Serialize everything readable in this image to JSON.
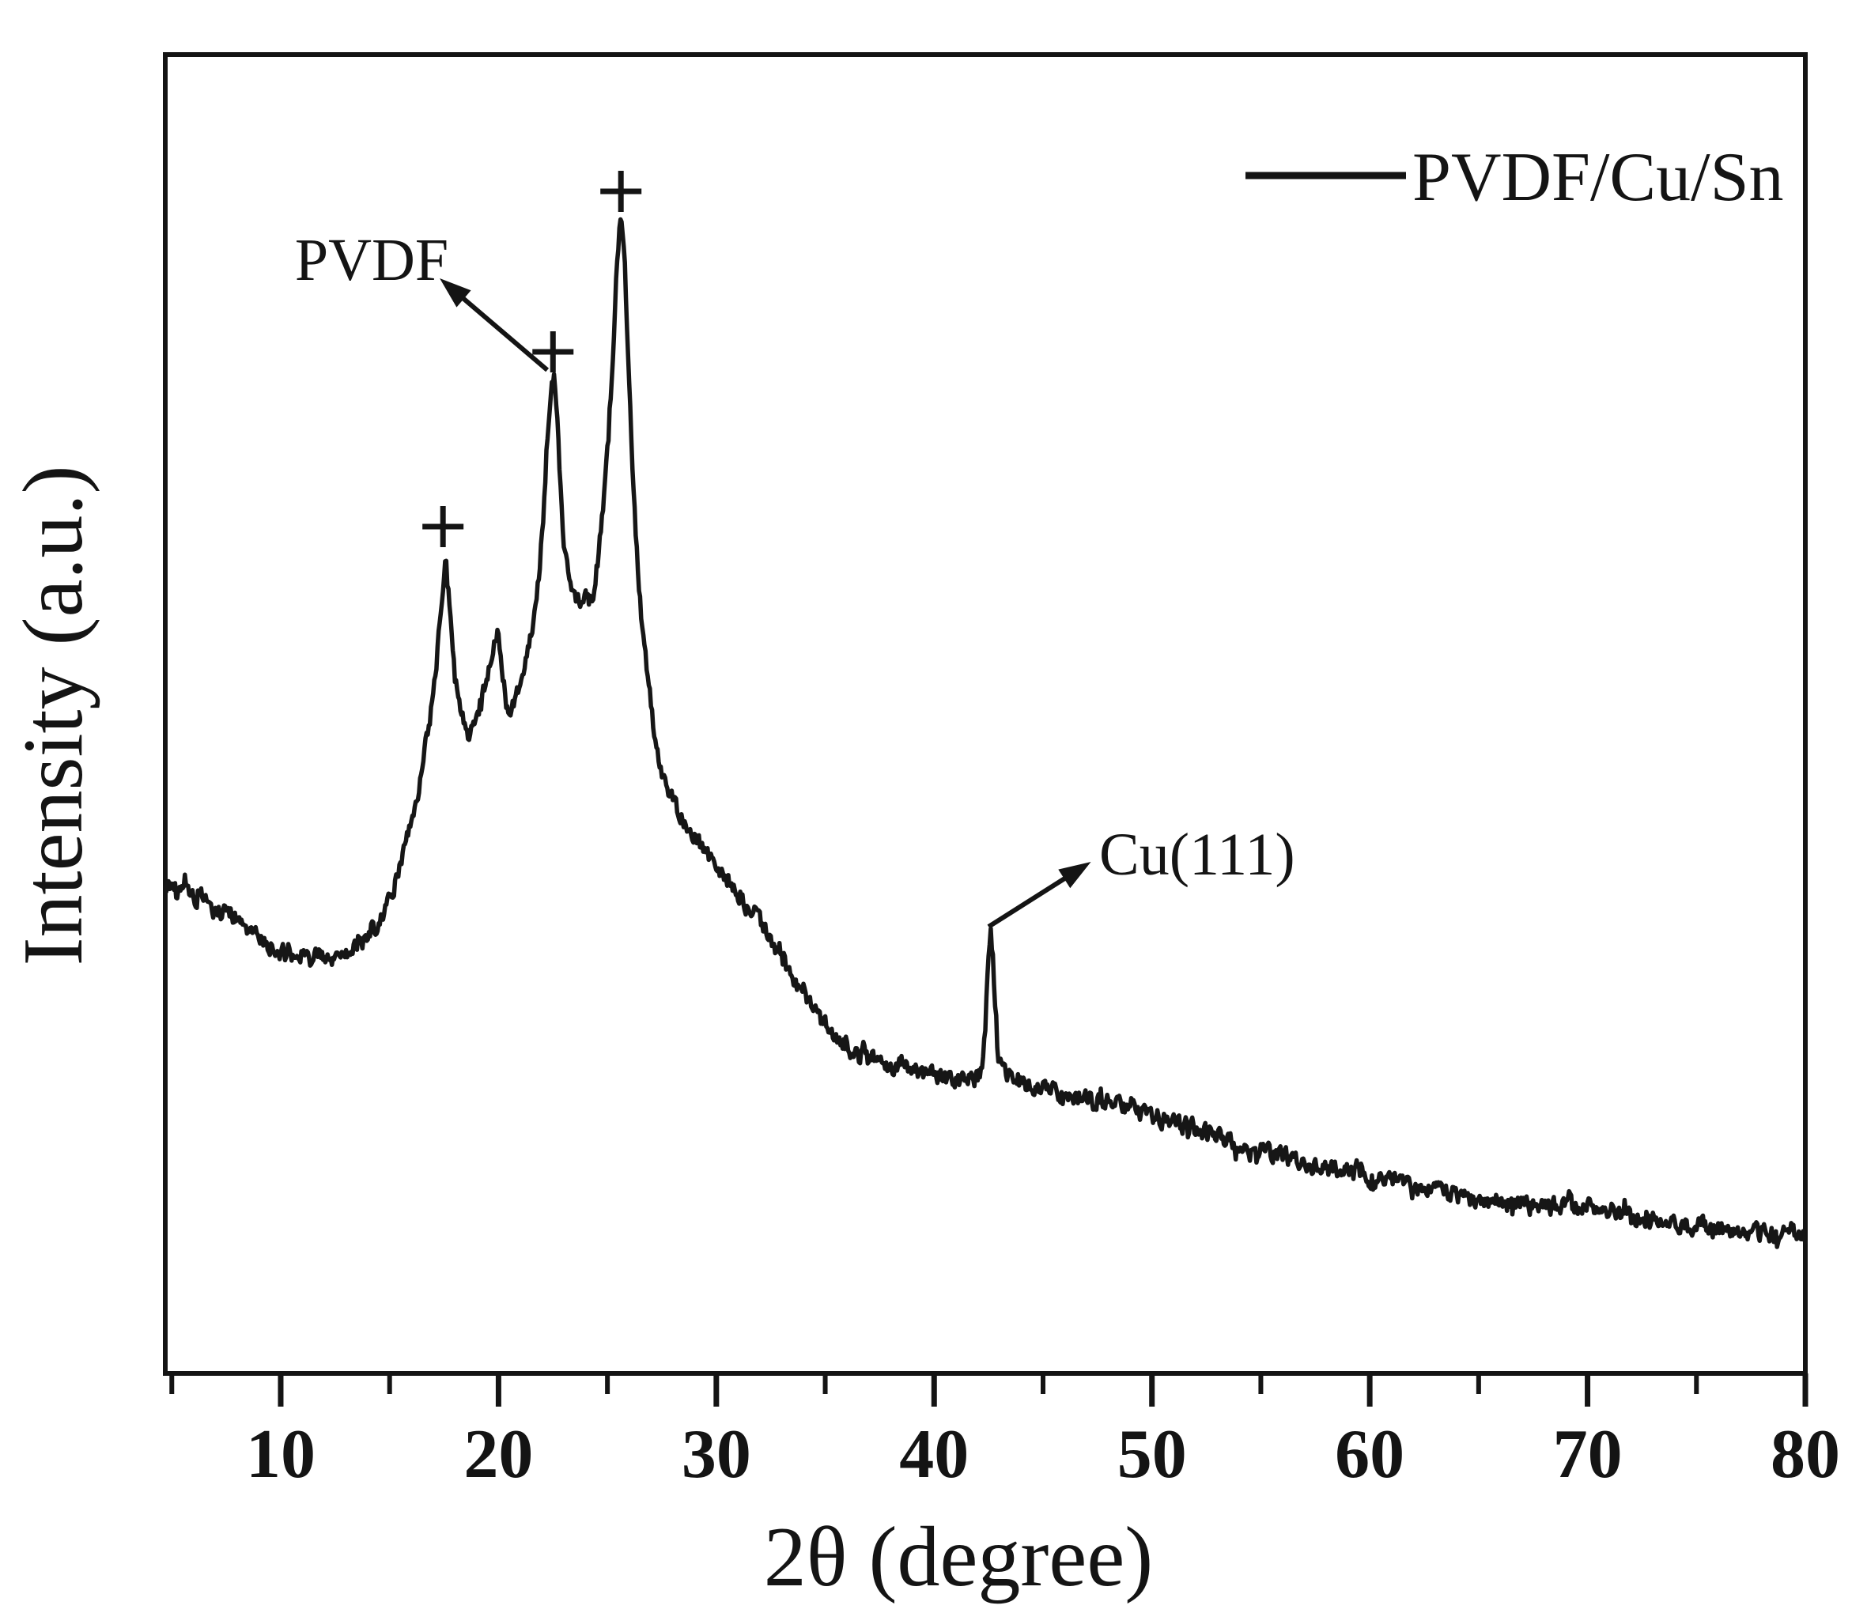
{
  "figure": {
    "background_color": "#ffffff",
    "ink_color": "#141414",
    "description": "XRD pattern of PVDF/Cu/Sn composite film"
  },
  "legend": {
    "swatch": "solid-line",
    "label": "PVDF/Cu/Sn"
  },
  "chart_data": {
    "type": "line",
    "title": "",
    "xlabel": "2θ (degree)",
    "ylabel": "Intensity (a.u.)",
    "xlim": [
      4.7,
      80
    ],
    "ylim": [
      0,
      1668
    ],
    "x_major_ticks": [
      10,
      20,
      30,
      40,
      50,
      60,
      70,
      80
    ],
    "x_minor_ticks": [
      5,
      15,
      25,
      35,
      45,
      55,
      65,
      75
    ],
    "y_ticks": [],
    "grid": false,
    "legend_position": "top-right",
    "noise_amplitude_au": 11,
    "series": [
      {
        "name": "PVDF/Cu/Sn",
        "color": "#141414",
        "points": [
          [
            5.0,
            617
          ],
          [
            5.3,
            606
          ],
          [
            5.6,
            612
          ],
          [
            6.0,
            600
          ],
          [
            6.4,
            606
          ],
          [
            6.8,
            588
          ],
          [
            7.2,
            585
          ],
          [
            7.6,
            585
          ],
          [
            8.0,
            570
          ],
          [
            8.4,
            563
          ],
          [
            8.8,
            556
          ],
          [
            9.2,
            548
          ],
          [
            9.6,
            541
          ],
          [
            10.0,
            533
          ],
          [
            10.4,
            527
          ],
          [
            10.8,
            523
          ],
          [
            11.2,
            521
          ],
          [
            11.6,
            526
          ],
          [
            12.0,
            530
          ],
          [
            12.4,
            527
          ],
          [
            12.8,
            531
          ],
          [
            13.2,
            533
          ],
          [
            13.6,
            541
          ],
          [
            14.0,
            549
          ],
          [
            14.4,
            565
          ],
          [
            14.8,
            588
          ],
          [
            15.2,
            618
          ],
          [
            15.6,
            655
          ],
          [
            16.0,
            700
          ],
          [
            16.4,
            748
          ],
          [
            16.8,
            815
          ],
          [
            17.1,
            880
          ],
          [
            17.35,
            960
          ],
          [
            17.55,
            1042
          ],
          [
            17.7,
            1000
          ],
          [
            17.85,
            935
          ],
          [
            18.0,
            880
          ],
          [
            18.15,
            858
          ],
          [
            18.3,
            840
          ],
          [
            18.5,
            818
          ],
          [
            18.65,
            809
          ],
          [
            18.8,
            826
          ],
          [
            19.1,
            845
          ],
          [
            19.4,
            868
          ],
          [
            19.7,
            905
          ],
          [
            19.95,
            943
          ],
          [
            20.1,
            915
          ],
          [
            20.25,
            875
          ],
          [
            20.45,
            850
          ],
          [
            20.6,
            846
          ],
          [
            20.8,
            856
          ],
          [
            21.0,
            874
          ],
          [
            21.3,
            900
          ],
          [
            21.6,
            948
          ],
          [
            21.85,
            1010
          ],
          [
            22.05,
            1085
          ],
          [
            22.25,
            1185
          ],
          [
            22.45,
            1255
          ],
          [
            22.55,
            1262
          ],
          [
            22.7,
            1205
          ],
          [
            22.85,
            1120
          ],
          [
            23.0,
            1045
          ],
          [
            23.2,
            1005
          ],
          [
            23.45,
            985
          ],
          [
            23.7,
            972
          ],
          [
            23.85,
            968
          ],
          [
            24.0,
            977
          ],
          [
            24.15,
            972
          ],
          [
            24.35,
            990
          ],
          [
            24.6,
            1035
          ],
          [
            24.85,
            1105
          ],
          [
            25.05,
            1185
          ],
          [
            25.25,
            1295
          ],
          [
            25.45,
            1405
          ],
          [
            25.62,
            1467
          ],
          [
            25.8,
            1395
          ],
          [
            25.95,
            1285
          ],
          [
            26.1,
            1180
          ],
          [
            26.3,
            1060
          ],
          [
            26.55,
            960
          ],
          [
            26.8,
            890
          ],
          [
            27.1,
            818
          ],
          [
            27.4,
            772
          ],
          [
            27.7,
            745
          ],
          [
            28.0,
            725
          ],
          [
            28.4,
            703
          ],
          [
            28.8,
            688
          ],
          [
            29.2,
            672
          ],
          [
            29.6,
            658
          ],
          [
            30.0,
            641
          ],
          [
            30.5,
            623
          ],
          [
            31.0,
            606
          ],
          [
            31.5,
            592
          ],
          [
            32.0,
            572
          ],
          [
            32.5,
            551
          ],
          [
            33.0,
            522
          ],
          [
            33.5,
            501
          ],
          [
            34.0,
            479
          ],
          [
            34.5,
            461
          ],
          [
            35.0,
            442
          ],
          [
            35.5,
            426
          ],
          [
            36.0,
            413
          ],
          [
            36.5,
            401
          ],
          [
            37.0,
            395
          ],
          [
            37.5,
            391
          ],
          [
            38.0,
            388
          ],
          [
            38.5,
            394
          ],
          [
            39.0,
            386
          ],
          [
            39.5,
            381
          ],
          [
            40.0,
            378
          ],
          [
            40.5,
            375
          ],
          [
            41.0,
            372
          ],
          [
            41.5,
            370
          ],
          [
            42.0,
            373
          ],
          [
            42.2,
            382
          ],
          [
            42.35,
            440
          ],
          [
            42.5,
            530
          ],
          [
            42.6,
            557
          ],
          [
            42.7,
            528
          ],
          [
            42.8,
            468
          ],
          [
            42.95,
            405
          ],
          [
            43.15,
            382
          ],
          [
            43.4,
            374
          ],
          [
            43.7,
            369
          ],
          [
            44.0,
            366
          ],
          [
            44.5,
            363
          ],
          [
            45.0,
            360
          ],
          [
            45.5,
            357
          ],
          [
            46.0,
            354
          ],
          [
            46.5,
            351
          ],
          [
            47.0,
            349
          ],
          [
            47.5,
            347
          ],
          [
            48.0,
            343
          ],
          [
            48.5,
            339
          ],
          [
            49.0,
            334
          ],
          [
            49.5,
            330
          ],
          [
            50.0,
            327
          ],
          [
            50.5,
            322
          ],
          [
            51.0,
            317
          ],
          [
            51.5,
            313
          ],
          [
            52.0,
            309
          ],
          [
            52.5,
            304
          ],
          [
            53.0,
            299
          ],
          [
            53.5,
            295
          ],
          [
            54.0,
            291
          ],
          [
            54.5,
            286
          ],
          [
            55.0,
            281
          ],
          [
            55.5,
            277
          ],
          [
            56.0,
            274
          ],
          [
            56.5,
            270
          ],
          [
            57.0,
            267
          ],
          [
            57.5,
            264
          ],
          [
            58.0,
            261
          ],
          [
            58.5,
            258
          ],
          [
            59.0,
            255
          ],
          [
            59.5,
            252
          ],
          [
            60.0,
            249
          ],
          [
            60.5,
            246
          ],
          [
            61.0,
            242
          ],
          [
            61.5,
            240
          ],
          [
            62.0,
            237
          ],
          [
            62.5,
            234
          ],
          [
            63.0,
            231
          ],
          [
            63.5,
            229
          ],
          [
            64.0,
            226
          ],
          [
            64.5,
            223
          ],
          [
            65.0,
            220
          ],
          [
            65.5,
            219
          ],
          [
            66.0,
            218
          ],
          [
            66.5,
            216
          ],
          [
            67.0,
            215
          ],
          [
            67.5,
            214
          ],
          [
            68.0,
            213
          ],
          [
            68.5,
            212
          ],
          [
            69.0,
            211
          ],
          [
            69.5,
            210
          ],
          [
            70.0,
            210
          ],
          [
            70.5,
            212
          ],
          [
            71.0,
            207
          ],
          [
            71.5,
            203
          ],
          [
            72.0,
            200
          ],
          [
            72.5,
            197
          ],
          [
            73.0,
            195
          ],
          [
            73.5,
            193
          ],
          [
            74.0,
            191
          ],
          [
            74.5,
            189
          ],
          [
            75.0,
            187
          ],
          [
            75.5,
            185
          ],
          [
            76.0,
            184
          ],
          [
            76.5,
            182
          ],
          [
            77.0,
            181
          ],
          [
            77.5,
            179
          ],
          [
            78.0,
            178
          ],
          [
            78.5,
            177
          ],
          [
            79.0,
            175
          ],
          [
            79.5,
            174
          ],
          [
            80.0,
            173
          ]
        ]
      }
    ],
    "peak_markers": {
      "symbol": "+",
      "meaning": "PVDF diffraction peaks",
      "points": [
        [
          17.45,
          1071
        ],
        [
          22.5,
          1292
        ],
        [
          25.62,
          1495
        ]
      ]
    },
    "annotations": [
      {
        "text": "PVDF",
        "arrow_tail": [
          22.24,
          1269
        ],
        "arrow_tip": [
          17.3,
          1385
        ]
      },
      {
        "text": "Cu(111)",
        "arrow_tail": [
          42.5,
          565
        ],
        "arrow_tip": [
          47.2,
          647
        ]
      }
    ]
  }
}
